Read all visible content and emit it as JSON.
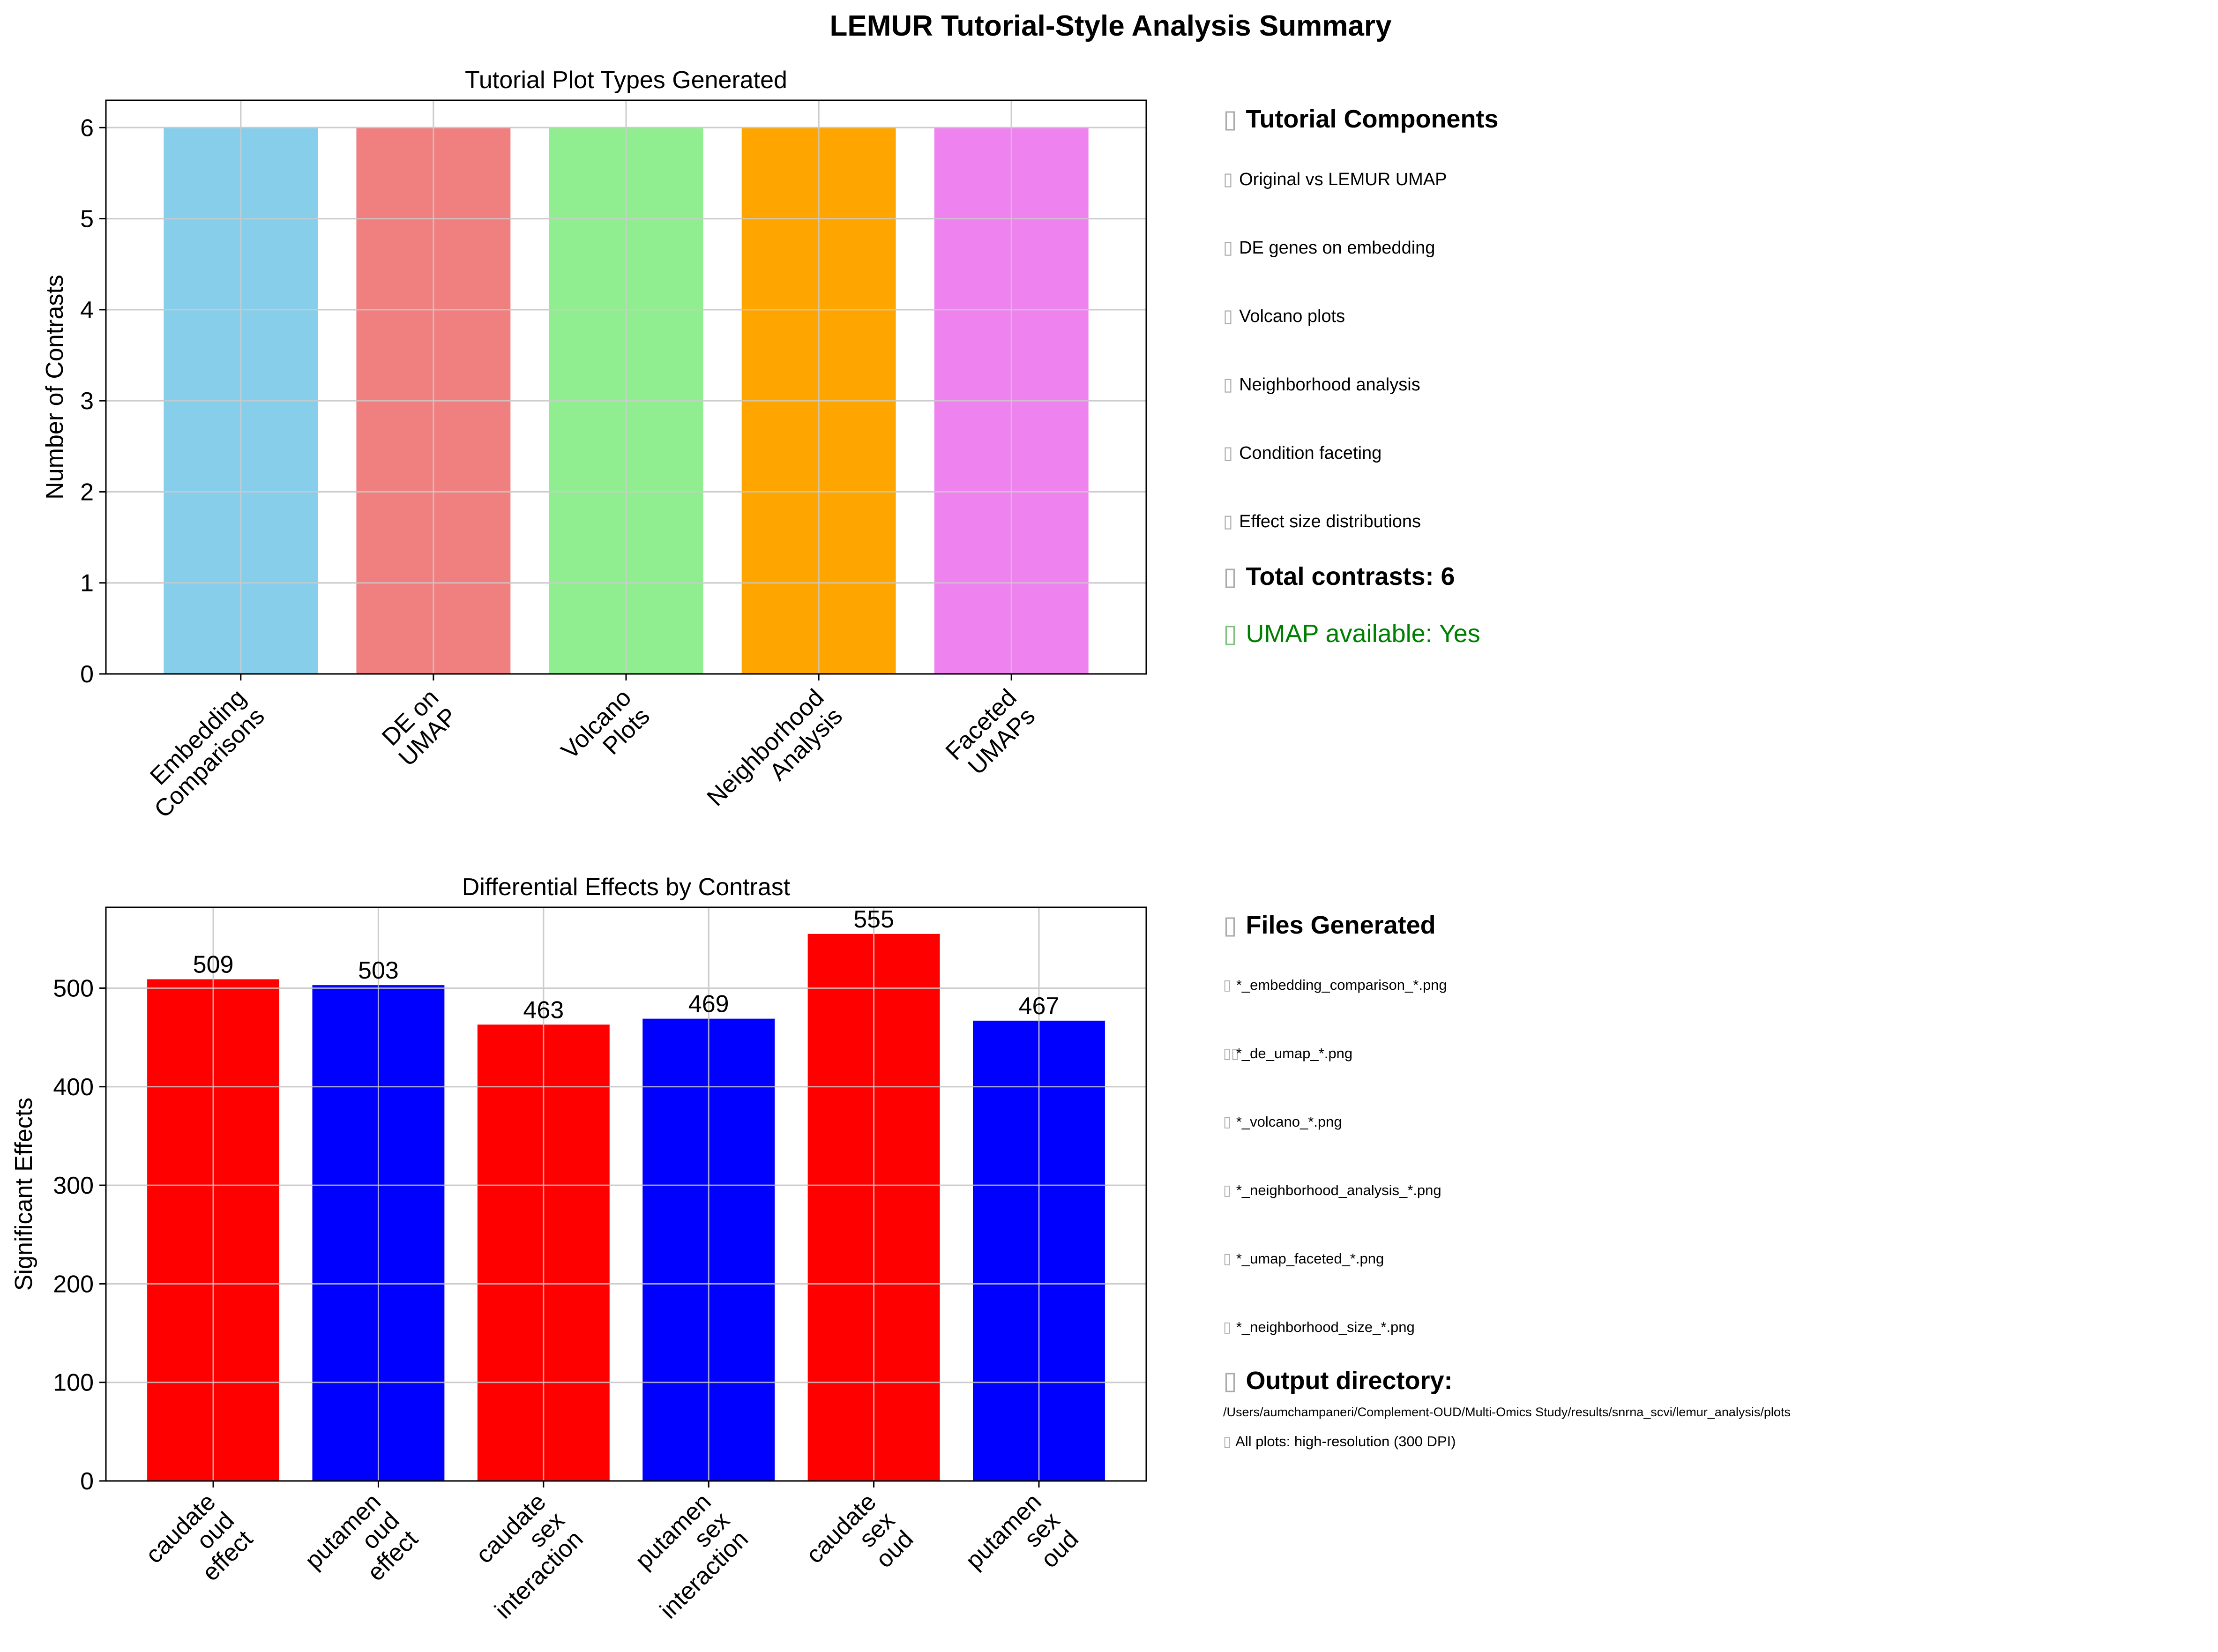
{
  "figure_title": "LEMUR Tutorial-Style Analysis Summary",
  "chart_data": [
    {
      "type": "bar",
      "title": "Tutorial Plot Types Generated",
      "xlabel": "",
      "ylabel": "Number of Contrasts",
      "categories": [
        "Embedding\nComparisons",
        "DE on\nUMAP",
        "Volcano\nPlots",
        "Neighborhood\nAnalysis",
        "Faceted\nUMAPs"
      ],
      "values": [
        6,
        6,
        6,
        6,
        6
      ],
      "colors": [
        "#87ceeb",
        "#f08080",
        "#90ee90",
        "#ffa500",
        "#ee82ee"
      ],
      "ylim": [
        0,
        6.3
      ],
      "yticks": [
        0,
        1,
        2,
        3,
        4,
        5,
        6
      ],
      "grid": true
    },
    {
      "type": "bar",
      "title": "Differential Effects by Contrast",
      "xlabel": "",
      "ylabel": "Significant Effects",
      "categories": [
        "caudate\noud\neffect",
        "putamen\noud\neffect",
        "caudate\nsex\ninteraction",
        "putamen\nsex\ninteraction",
        "caudate\nsex\noud",
        "putamen\nsex\noud"
      ],
      "values": [
        509,
        503,
        463,
        469,
        555,
        467
      ],
      "data_labels": [
        "509",
        "503",
        "463",
        "469",
        "555",
        "467"
      ],
      "colors": [
        "#ff0000",
        "#0000ff",
        "#ff0000",
        "#0000ff",
        "#ff0000",
        "#0000ff"
      ],
      "ylim": [
        0,
        582
      ],
      "yticks": [
        0,
        100,
        200,
        300,
        400,
        500
      ],
      "grid": true
    }
  ],
  "components_panel": {
    "title": "Tutorial Components",
    "title_icon": "clipboard-icon",
    "items": [
      {
        "icon": "check-icon",
        "label": "Original vs LEMUR UMAP"
      },
      {
        "icon": "check-icon",
        "label": "DE genes on embedding"
      },
      {
        "icon": "check-icon",
        "label": "Volcano plots"
      },
      {
        "icon": "check-icon",
        "label": "Neighborhood analysis"
      },
      {
        "icon": "check-icon",
        "label": "Condition faceting"
      },
      {
        "icon": "check-icon",
        "label": "Effect size distributions"
      }
    ],
    "total_contrasts": "Total contrasts: 6",
    "umap_available": "UMAP available: Yes",
    "umap_color": "#008000"
  },
  "files_panel": {
    "title": "Files Generated",
    "title_icon": "folder-icon",
    "items": [
      {
        "icon": "file-icon",
        "label": "*_embedding_comparison_*.png"
      },
      {
        "icon": "file-icon",
        "label": "*_de_umap_*.png"
      },
      {
        "icon": "file-icon",
        "label": "*_volcano_*.png"
      },
      {
        "icon": "file-icon",
        "label": "*_neighborhood_analysis_*.png"
      },
      {
        "icon": "file-icon",
        "label": "*_umap_faceted_*.png"
      },
      {
        "icon": "file-icon",
        "label": "*_neighborhood_size_*.png"
      }
    ],
    "output_title": "Output directory:",
    "output_path": "/Users/aumchampaneri/Complement-OUD/Multi-Omics Study/results/snrna_scvi/lemur_analysis/plots",
    "resolution_note": "All plots: high-resolution (300 DPI)"
  }
}
